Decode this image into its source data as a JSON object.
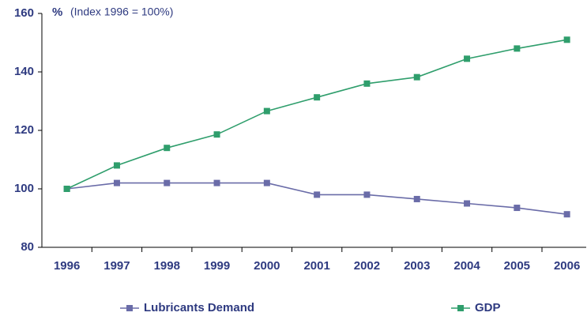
{
  "chart_data": {
    "type": "line",
    "unit": "%",
    "subtitle": "(Index 1996 = 100%)",
    "categories": [
      "1996",
      "1997",
      "1998",
      "1999",
      "2000",
      "2001",
      "2002",
      "2003",
      "2004",
      "2005",
      "2006"
    ],
    "series": [
      {
        "name": "Lubricants Demand",
        "color": "#6a6ca8",
        "values": [
          100,
          102,
          102,
          102,
          102,
          98,
          98,
          96.5,
          95,
          93.5,
          91.3
        ]
      },
      {
        "name": "GDP",
        "color": "#2f9e6c",
        "values": [
          100,
          108,
          114,
          118.6,
          126.6,
          131.3,
          136,
          138.2,
          144.5,
          148,
          151
        ]
      }
    ],
    "ylim": [
      80,
      160
    ],
    "yticks": [
      80,
      100,
      120,
      140,
      160
    ],
    "grid": false,
    "legend": "bottom"
  }
}
